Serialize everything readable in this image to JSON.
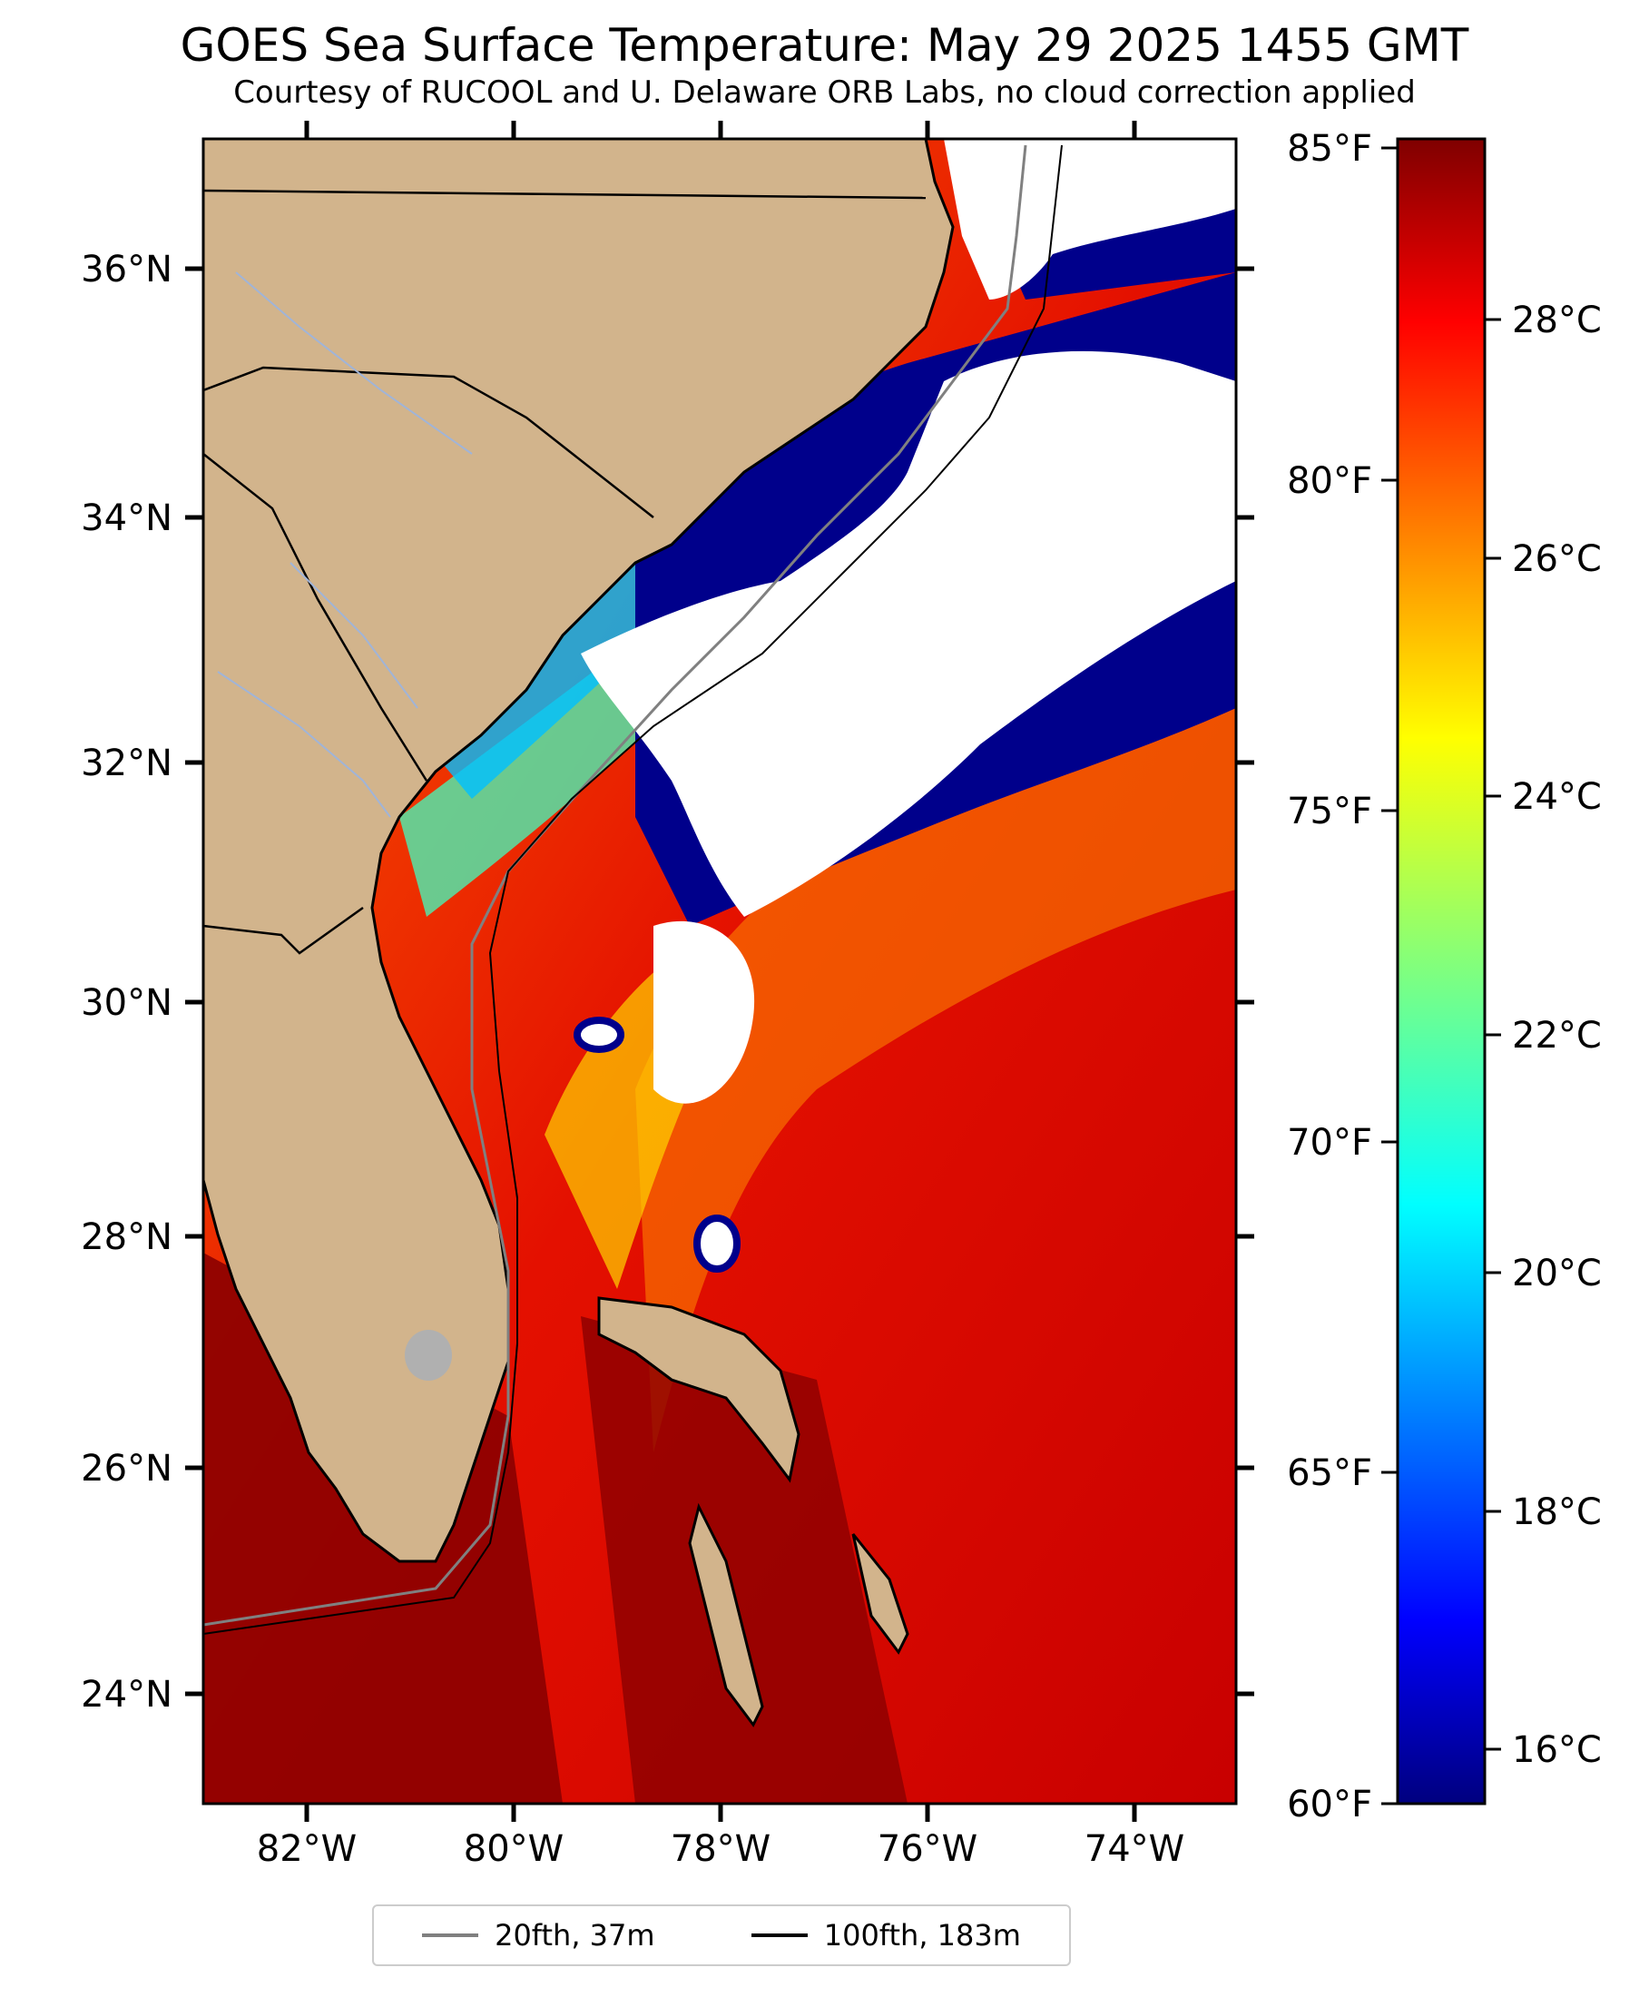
{
  "title": "GOES Sea Surface Temperature: May 29 2025 1455 GMT",
  "subtitle": "Courtesy of RUCOOL and U. Delaware ORB Labs, no cloud correction applied",
  "map": {
    "lat_ticks": [
      "36°N",
      "34°N",
      "32°N",
      "30°N",
      "28°N",
      "26°N",
      "24°N"
    ],
    "lon_ticks": [
      "82°W",
      "80°W",
      "78°W",
      "76°W",
      "74°W"
    ],
    "extent": {
      "lon_min": -83.0,
      "lon_max": -73.0,
      "lat_min": 23.1,
      "lat_max": 37.0
    },
    "colors": {
      "land": "#d2b48c",
      "cloud": "#ffffff",
      "cold_water": "#00008b",
      "river": "#a0b4d8"
    },
    "cloud_mask": "no cloud correction applied"
  },
  "colorbar": {
    "fahrenheit_labels": [
      "85°F",
      "80°F",
      "75°F",
      "70°F",
      "65°F",
      "60°F"
    ],
    "celsius_labels": [
      "28°C",
      "26°C",
      "24°C",
      "22°C",
      "20°C",
      "18°C",
      "16°C"
    ],
    "range_f": [
      60,
      85
    ],
    "colormap": "jet"
  },
  "legend": [
    {
      "label": "20fth, 37m",
      "color": "#808080"
    },
    {
      "label": "100fth, 183m",
      "color": "#000000"
    }
  ]
}
